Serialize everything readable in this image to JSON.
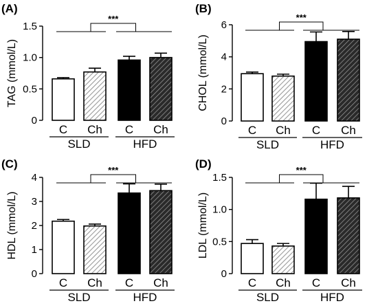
{
  "chart_data": [
    {
      "type": "bar",
      "panel": "(A)",
      "ylabel": "TAG (mmol/L)",
      "ylim": [
        0,
        1.5
      ],
      "yticks": [
        "0",
        "0.5",
        "1.0",
        "1.5"
      ],
      "ytick_values": [
        0,
        0.5,
        1.0,
        1.5
      ],
      "categories": [
        "C",
        "Ch",
        "C",
        "Ch"
      ],
      "groups": [
        "SLD",
        "HFD"
      ],
      "values": [
        0.66,
        0.77,
        0.96,
        1.0
      ],
      "errors": [
        0.02,
        0.06,
        0.06,
        0.07
      ],
      "significance": "***"
    },
    {
      "type": "bar",
      "panel": "(B)",
      "ylabel": "CHOL (mmol/L)",
      "ylim": [
        0,
        6
      ],
      "yticks": [
        "0",
        "2",
        "4",
        "6"
      ],
      "ytick_values": [
        0,
        2,
        4,
        6
      ],
      "categories": [
        "C",
        "Ch",
        "C",
        "Ch"
      ],
      "groups": [
        "SLD",
        "HFD"
      ],
      "values": [
        2.95,
        2.8,
        4.95,
        5.1
      ],
      "errors": [
        0.1,
        0.12,
        0.6,
        0.48
      ],
      "significance": "***"
    },
    {
      "type": "bar",
      "panel": "(C)",
      "ylabel": "HDL (mmol/L)",
      "ylim": [
        0,
        4
      ],
      "yticks": [
        "0",
        "1",
        "2",
        "3",
        "4"
      ],
      "ytick_values": [
        0,
        1,
        2,
        3,
        4
      ],
      "categories": [
        "C",
        "Ch",
        "C",
        "Ch"
      ],
      "groups": [
        "SLD",
        "HFD"
      ],
      "values": [
        2.18,
        1.98,
        3.35,
        3.45
      ],
      "errors": [
        0.07,
        0.08,
        0.38,
        0.27
      ],
      "significance": "***"
    },
    {
      "type": "bar",
      "panel": "(D)",
      "ylabel": "LDL (mmol/L)",
      "ylim": [
        0,
        1.5
      ],
      "yticks": [
        "0",
        "0.5",
        "1.0",
        "1.5"
      ],
      "ytick_values": [
        0,
        0.5,
        1.0,
        1.5
      ],
      "categories": [
        "C",
        "Ch",
        "C",
        "Ch"
      ],
      "groups": [
        "SLD",
        "HFD"
      ],
      "values": [
        0.47,
        0.43,
        1.16,
        1.18
      ],
      "errors": [
        0.06,
        0.04,
        0.25,
        0.18
      ],
      "significance": "***"
    }
  ],
  "colors": {
    "control_fill": "#ffffff",
    "sld_ch_hatch": "#9a9a9a",
    "hfd_fill": "#000000",
    "hfd_ch_fill": "#333333",
    "hfd_ch_hatch": "#9a9a9a",
    "axis": "#000000"
  }
}
